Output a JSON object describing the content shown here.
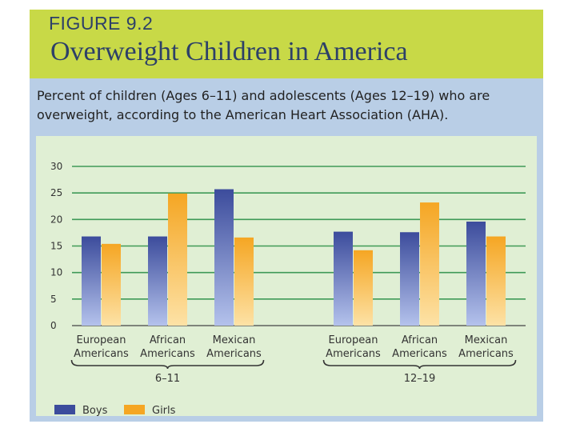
{
  "figure": {
    "label": "FIGURE 9.2",
    "title": "Overweight Children in America",
    "description": "Percent of children (Ages 6–11) and adolescents (Ages 12–19) who are overweight, according to the American Heart Association (AHA)."
  },
  "colors": {
    "boys": "#3c4c9c",
    "girls": "#f5a623",
    "gridline": "#3f9a57",
    "header": "#c8d947",
    "title_text": "#2d4068"
  },
  "chart_data": {
    "type": "bar",
    "title": "Overweight Children in America",
    "ylim": [
      0,
      30
    ],
    "yticks": [
      0,
      5,
      10,
      15,
      20,
      25,
      30
    ],
    "grid": true,
    "groups": [
      {
        "label": "6–11",
        "categories": [
          [
            "European",
            "Americans"
          ],
          [
            "African",
            "Americans"
          ],
          [
            "Mexican",
            "Americans"
          ]
        ]
      },
      {
        "label": "12–19",
        "categories": [
          [
            "European",
            "Americans"
          ],
          [
            "African",
            "Americans"
          ],
          [
            "Mexican",
            "Americans"
          ]
        ]
      }
    ],
    "series": [
      {
        "name": "Boys",
        "values": [
          16.8,
          16.8,
          25.7,
          17.7,
          17.6,
          19.6
        ]
      },
      {
        "name": "Girls",
        "values": [
          15.4,
          24.9,
          16.6,
          14.2,
          23.2,
          16.8
        ]
      }
    ],
    "legend": [
      "Boys",
      "Girls"
    ]
  }
}
